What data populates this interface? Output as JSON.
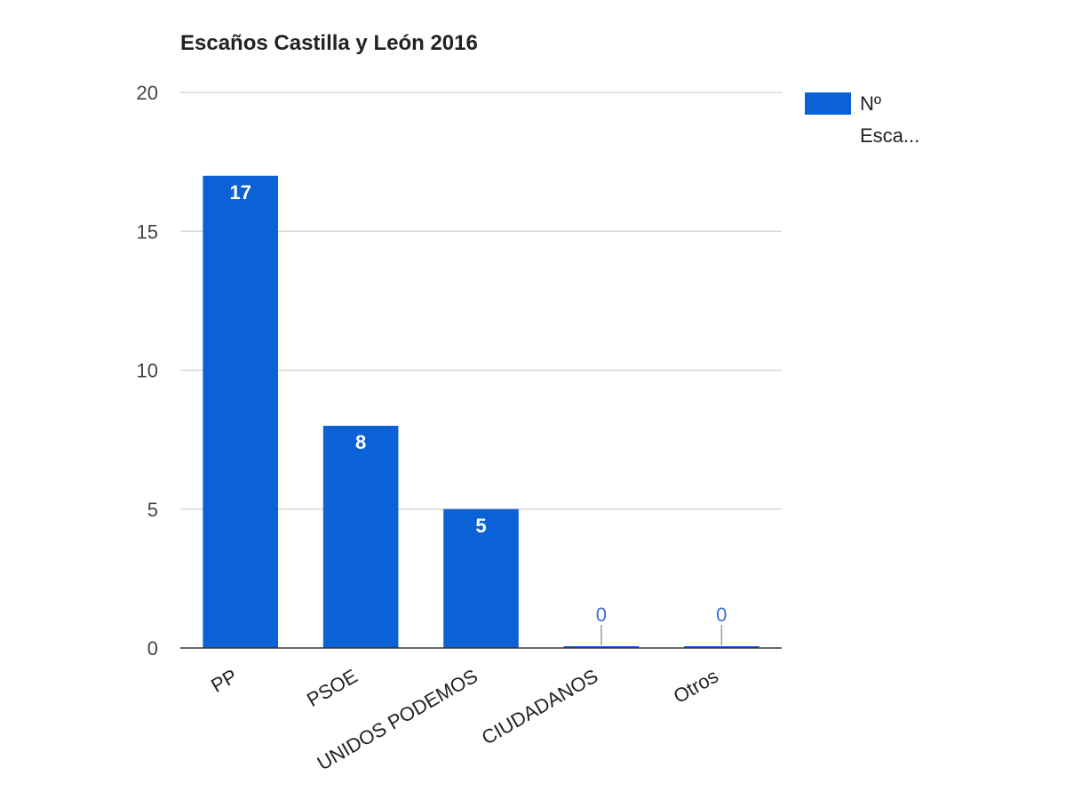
{
  "chart_data": {
    "type": "bar",
    "title": "Escaños Castilla y León 2016",
    "categories": [
      "PP",
      "PSOE",
      "UNIDOS PODEMOS",
      "CIUDADANOS",
      "Otros"
    ],
    "series": [
      {
        "name": "Nº Esca...",
        "values": [
          17,
          8,
          5,
          0,
          0
        ],
        "color": "#0b62d6"
      }
    ],
    "data_labels": [
      "17",
      "8",
      "5",
      "0",
      "0"
    ],
    "ylim": [
      0,
      20
    ],
    "yticks": [
      0,
      5,
      10,
      15,
      20
    ],
    "ytick_labels": [
      "0",
      "5",
      "10",
      "15",
      "20"
    ],
    "grid": true,
    "legend_position": "right",
    "legend_lines": [
      "Nº",
      "Esca..."
    ],
    "xlabel": "",
    "ylabel": ""
  }
}
